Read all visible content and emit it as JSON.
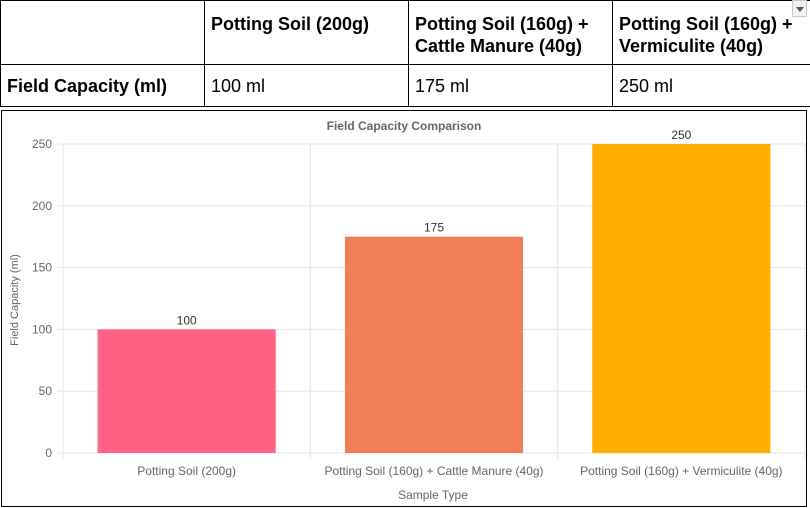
{
  "table": {
    "header": [
      "",
      "Potting Soil (200g)",
      "Potting Soil (160g) + Cattle Manure (40g)",
      "Potting Soil (160g) + Vermiculite (40g)"
    ],
    "row_label": "Field Capacity (ml)",
    "row_values": [
      "100 ml",
      "175 ml",
      "250 ml"
    ]
  },
  "chart_data": {
    "type": "bar",
    "title": "Field Capacity Comparison",
    "xlabel": "Sample Type",
    "ylabel": "Field Capacity (ml)",
    "categories": [
      "Potting Soil (200g)",
      "Potting Soil (160g) + Cattle Manure (40g)",
      "Potting Soil (160g) + Vermiculite (40g)"
    ],
    "values": [
      100,
      175,
      250
    ],
    "value_labels": [
      "100",
      "175",
      "250"
    ],
    "y_ticks": [
      "0",
      "50",
      "100",
      "150",
      "200",
      "250"
    ],
    "ylim": [
      0,
      250
    ],
    "grid": true,
    "legend": "none",
    "colors": {
      "bars": [
        "#ff6384",
        "#f27e57",
        "#ffae00"
      ],
      "grid": "#e5e5e5",
      "tick_text": "#666666",
      "title_text": "#666666",
      "value_text": "#333333"
    }
  }
}
